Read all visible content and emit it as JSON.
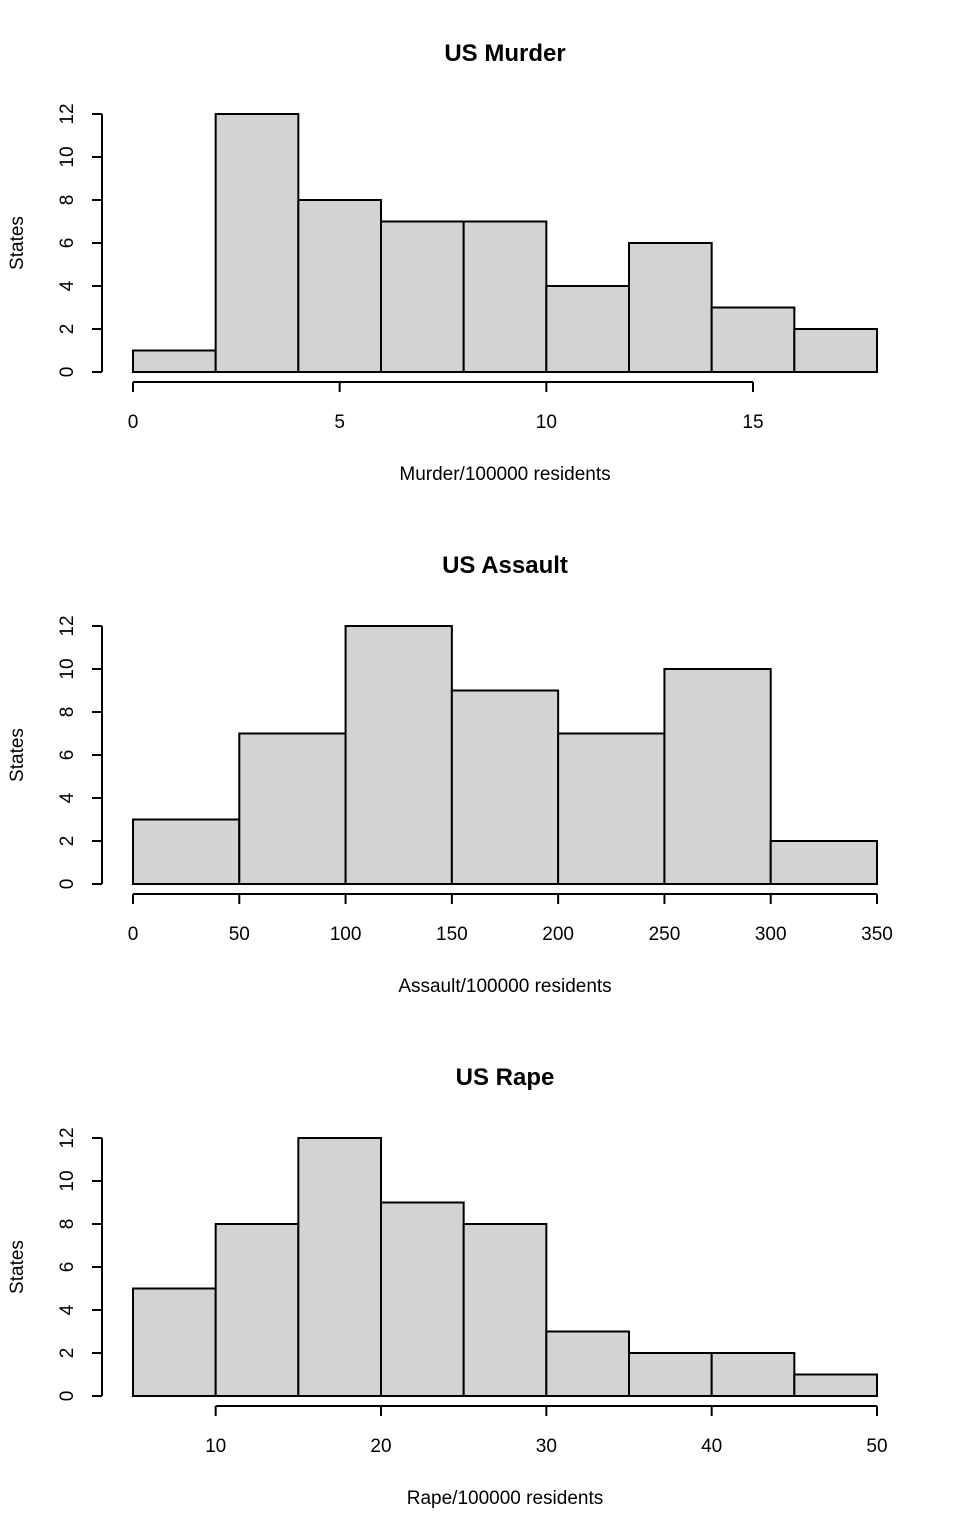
{
  "chart_data": [
    {
      "type": "bar",
      "title": "US Murder",
      "xlabel": "Murder/100000 residents",
      "ylabel": "States",
      "bin_edges": [
        0,
        2,
        4,
        6,
        8,
        10,
        12,
        14,
        16,
        18
      ],
      "values": [
        1,
        12,
        8,
        7,
        7,
        4,
        6,
        3,
        2
      ],
      "x_ticks": [
        0,
        5,
        10,
        15
      ],
      "y_ticks": [
        0,
        2,
        4,
        6,
        8,
        10,
        12
      ],
      "xlim": [
        0,
        18
      ],
      "ylim": [
        0,
        12
      ],
      "grid": false
    },
    {
      "type": "bar",
      "title": "US Assault",
      "xlabel": "Assault/100000 residents",
      "ylabel": "States",
      "bin_edges": [
        0,
        50,
        100,
        150,
        200,
        250,
        300,
        350
      ],
      "values": [
        3,
        7,
        12,
        9,
        7,
        10,
        2
      ],
      "x_ticks": [
        0,
        50,
        100,
        150,
        200,
        250,
        300,
        350
      ],
      "y_ticks": [
        0,
        2,
        4,
        6,
        8,
        10,
        12
      ],
      "xlim": [
        0,
        350
      ],
      "ylim": [
        0,
        12
      ],
      "grid": false
    },
    {
      "type": "bar",
      "title": "US Rape",
      "xlabel": "Rape/100000 residents",
      "ylabel": "States",
      "bin_edges": [
        5,
        10,
        15,
        20,
        25,
        30,
        35,
        40,
        45,
        50
      ],
      "values": [
        5,
        8,
        12,
        9,
        8,
        3,
        2,
        2,
        1
      ],
      "x_ticks": [
        10,
        20,
        30,
        40,
        50
      ],
      "y_ticks": [
        0,
        2,
        4,
        6,
        8,
        10,
        12
      ],
      "xlim": [
        5,
        50
      ],
      "ylim": [
        0,
        12
      ],
      "grid": false
    }
  ]
}
